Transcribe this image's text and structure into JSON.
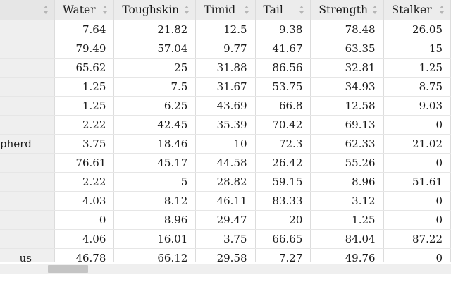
{
  "columns": [
    "Water",
    "Toughskin",
    "Timid",
    "Tail",
    "Strength",
    "Stalker"
  ],
  "rows": [
    {
      "label": "",
      "values": [
        "7.64",
        "21.82",
        "12.5",
        "9.38",
        "78.48",
        "26.05"
      ]
    },
    {
      "label": "",
      "values": [
        "79.49",
        "57.04",
        "9.77",
        "41.67",
        "63.35",
        "15"
      ]
    },
    {
      "label": "",
      "values": [
        "65.62",
        "25",
        "31.88",
        "86.56",
        "32.81",
        "1.25"
      ]
    },
    {
      "label": "",
      "values": [
        "1.25",
        "7.5",
        "31.67",
        "53.75",
        "34.93",
        "8.75"
      ]
    },
    {
      "label": "",
      "values": [
        "1.25",
        "6.25",
        "43.69",
        "66.8",
        "12.58",
        "9.03"
      ]
    },
    {
      "label": "",
      "values": [
        "2.22",
        "42.45",
        "35.39",
        "70.42",
        "69.13",
        "0"
      ]
    },
    {
      "label": "pherd",
      "values": [
        "3.75",
        "18.46",
        "10",
        "72.3",
        "62.33",
        "21.02"
      ]
    },
    {
      "label": "",
      "values": [
        "76.61",
        "45.17",
        "44.58",
        "26.42",
        "55.26",
        "0"
      ]
    },
    {
      "label": "",
      "values": [
        "2.22",
        "5",
        "28.82",
        "59.15",
        "8.96",
        "51.61"
      ]
    },
    {
      "label": "",
      "values": [
        "4.03",
        "8.12",
        "46.11",
        "83.33",
        "3.12",
        "0"
      ]
    },
    {
      "label": "",
      "values": [
        "0",
        "8.96",
        "29.47",
        "20",
        "1.25",
        "0"
      ]
    },
    {
      "label": "",
      "values": [
        "4.06",
        "16.01",
        "3.75",
        "66.65",
        "84.04",
        "87.22"
      ]
    },
    {
      "label": "us",
      "values": [
        "46.78",
        "66.12",
        "29.58",
        "7.27",
        "49.76",
        "0"
      ]
    }
  ]
}
